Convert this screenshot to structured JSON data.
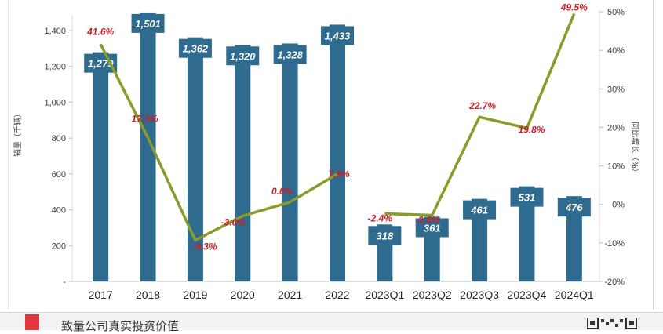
{
  "chart_data": {
    "type": "bar",
    "categories": [
      "2017",
      "2018",
      "2019",
      "2020",
      "2021",
      "2022",
      "2023Q1",
      "2023Q2",
      "2023Q3",
      "2023Q4",
      "2024Q1"
    ],
    "series": [
      {
        "values": [
          1279,
          1501,
          1362,
          1320,
          1328,
          1433,
          318,
          361,
          461,
          531,
          476
        ],
        "value_labels": [
          "1,279",
          "1,501",
          "1,362",
          "1,320",
          "1,328",
          "1,433",
          "318",
          "361",
          "461",
          "531",
          "476"
        ],
        "color": "#2e6b8f",
        "axis": "left"
      },
      {
        "values": [
          41.6,
          17.3,
          -9.3,
          -3.0,
          0.6,
          7.9,
          -2.4,
          -2.8,
          22.7,
          19.8,
          49.5
        ],
        "value_labels": [
          "41.6%",
          "17.3%",
          "-9.3%",
          "-3.0%",
          "0.6%",
          "7.9%",
          "-2.4%",
          "-2.8%",
          "22.7%",
          "19.8%",
          "49.5%"
        ],
        "type": "line",
        "color": "#8a9a2b",
        "label_color": "#cc1f28",
        "axis": "right",
        "segments": [
          [
            0,
            5
          ],
          [
            6,
            10
          ]
        ]
      }
    ],
    "ylabel": "销量（千辆）",
    "ylabel_right": "同比增长（%）",
    "ylim": [
      0,
      1500
    ],
    "ylim_right": [
      -20,
      50
    ],
    "y_ticks": [
      {
        "value": 0,
        "label": "-"
      },
      {
        "value": 200,
        "label": "200"
      },
      {
        "value": 400,
        "label": "400"
      },
      {
        "value": 600,
        "label": "600"
      },
      {
        "value": 800,
        "label": "800"
      },
      {
        "value": 1000,
        "label": "1,000"
      },
      {
        "value": 1200,
        "label": "1,200"
      },
      {
        "value": 1400,
        "label": "1,400"
      }
    ],
    "y_right_ticks": [
      {
        "value": -20,
        "label": "-20%"
      },
      {
        "value": -10,
        "label": "-10%"
      },
      {
        "value": 0,
        "label": "0%"
      },
      {
        "value": 10,
        "label": "10%"
      },
      {
        "value": 20,
        "label": "20%"
      },
      {
        "value": 30,
        "label": "30%"
      },
      {
        "value": 40,
        "label": "40%"
      },
      {
        "value": 50,
        "label": "50%"
      }
    ],
    "grid": false,
    "legend": "none"
  },
  "footer": {
    "text": "致量公司真实投资价值"
  }
}
